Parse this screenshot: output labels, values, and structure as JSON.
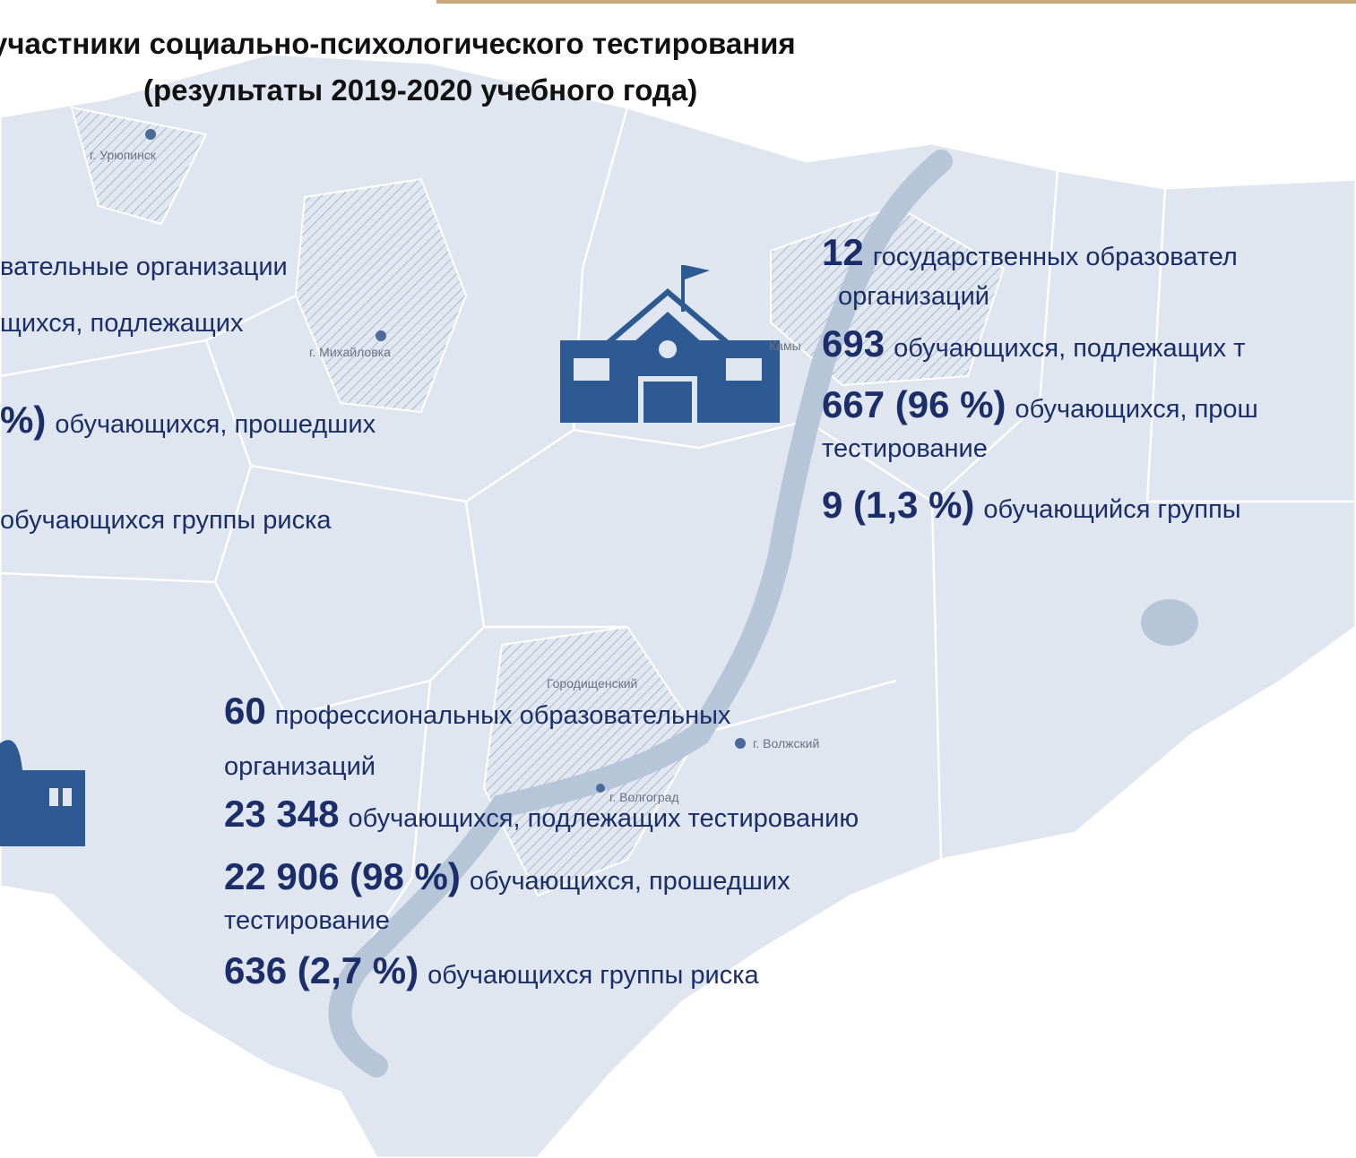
{
  "title": {
    "line1": "участники социально-психологического тестирования",
    "line2": "(результаты 2019-2020 учебного  года)"
  },
  "map_labels": [
    "г. Урюпинск",
    "г. Михайловка",
    "Камы",
    "Городищенский",
    "г. Волжский",
    "г. Волгоград"
  ],
  "blocks": [
    {
      "lines": [
        {
          "text": "вательные  организации"
        },
        {
          "text": "щихся, подлежащих"
        },
        {
          "bold": "%)",
          "text": "обучающихся, прошедших"
        },
        {
          "text": "обучающихся группы  риска"
        }
      ]
    },
    {
      "lines": [
        {
          "bold": "12",
          "text": "государственных образовател"
        },
        {
          "text": "организаций"
        },
        {
          "bold": "693",
          "text": "обучающихся, подлежащих т"
        },
        {
          "bold": "667 (96 %)",
          "text": "обучающихся, прош"
        },
        {
          "text": "тестирование"
        },
        {
          "bold": "9 (1,3 %)",
          "text": "обучающийся группы"
        }
      ]
    },
    {
      "lines": [
        {
          "bold": "60",
          "text": "профессиональных  образовательных"
        },
        {
          "text": "организаций"
        },
        {
          "bold": "23 348",
          "text": "обучающихся, подлежащих тестированию"
        },
        {
          "bold": "22 906 (98 %)",
          "text": "обучающихся, прошедших"
        },
        {
          "text": "тестирование"
        },
        {
          "bold": "636 (2,7 %)",
          "text": "обучающихся группы риска"
        }
      ]
    }
  ]
}
